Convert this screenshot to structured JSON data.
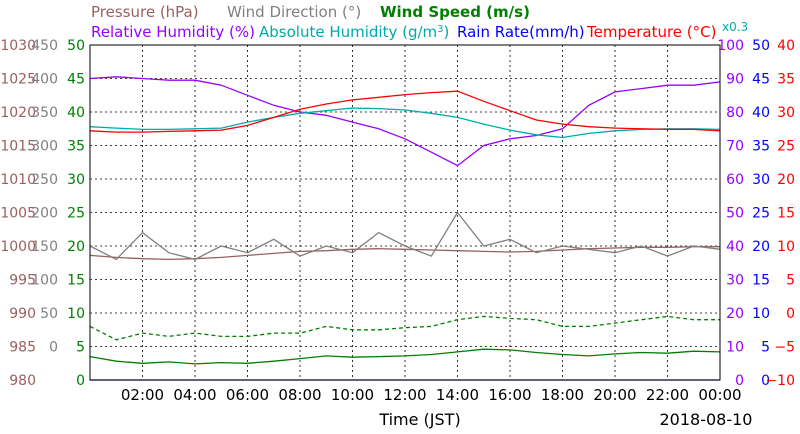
{
  "legend": {
    "pressure": "Pressure (hPa)",
    "wind_direction": "Wind Direction (°)",
    "wind_speed": "Wind Speed (m/s)",
    "relative_humidity": "Relative Humidity (%)",
    "absolute_humidity_prefix": "Absolute Humidity (g/m",
    "absolute_humidity_sup": "3",
    "absolute_humidity_suffix": ")",
    "rain_rate": "Rain Rate(mm/h)",
    "temperature": "Temperature (°C)",
    "abs_humidity_scale": "x0.3"
  },
  "colors": {
    "pressure": "#9a6060",
    "wind_direction": "#808080",
    "wind_speed": "#008000",
    "relative_humidity": "#9900ff",
    "absolute_humidity": "#00aaaa",
    "rain_rate": "#0000ff",
    "temperature": "#ff0000",
    "grid": "#000000"
  },
  "chart_data": {
    "type": "line",
    "xlabel": "Time (JST)",
    "date_label": "2018-08-10",
    "x_ticks": [
      "02:00",
      "04:00",
      "06:00",
      "08:00",
      "10:00",
      "12:00",
      "14:00",
      "16:00",
      "18:00",
      "20:00",
      "22:00",
      "00:00"
    ],
    "xlim_hours": [
      0,
      24
    ],
    "grid": true,
    "axes": {
      "pressure": {
        "ticks": [
          "1030",
          "1025",
          "1020",
          "1015",
          "1010",
          "1005",
          "1000",
          "995",
          "990",
          "985",
          "980"
        ],
        "range": [
          980,
          1030
        ]
      },
      "wind_direction": {
        "ticks": [
          "450",
          "400",
          "350",
          "300",
          "250",
          "200",
          "150",
          "100",
          "50",
          "0"
        ],
        "range": [
          0,
          500
        ]
      },
      "wind_speed": {
        "ticks": [
          "50",
          "45",
          "40",
          "35",
          "30",
          "25",
          "20",
          "15",
          "10",
          "5",
          "0"
        ],
        "range": [
          0,
          50
        ]
      },
      "relative_humidity": {
        "ticks": [
          "100",
          "90",
          "80",
          "70",
          "60",
          "50",
          "40",
          "30",
          "20",
          "10",
          "0"
        ],
        "range": [
          0,
          100
        ]
      },
      "rain_rate": {
        "ticks": [
          "50",
          "45",
          "40",
          "35",
          "30",
          "25",
          "20",
          "15",
          "10",
          "5",
          "0"
        ],
        "range": [
          0,
          50
        ]
      },
      "temperature": {
        "ticks": [
          "40",
          "35",
          "30",
          "25",
          "20",
          "15",
          "10",
          "5",
          "0",
          "−5",
          "−10"
        ],
        "range": [
          -10,
          40
        ]
      }
    },
    "series": [
      {
        "name": "Pressure (hPa)",
        "axis": "pressure",
        "color": "#9a6060",
        "x": [
          0,
          1,
          2,
          3,
          4,
          5,
          6,
          7,
          8,
          9,
          10,
          11,
          12,
          13,
          14,
          15,
          16,
          17,
          18,
          19,
          20,
          21,
          22,
          23,
          24
        ],
        "values": [
          998.6,
          998.3,
          998.1,
          998.0,
          998.1,
          998.3,
          998.6,
          998.9,
          999.2,
          999.3,
          999.5,
          999.6,
          999.5,
          999.4,
          999.3,
          999.2,
          999.1,
          999.2,
          999.4,
          999.6,
          999.7,
          999.8,
          999.8,
          999.9,
          999.9
        ]
      },
      {
        "name": "Wind Direction (°)",
        "axis": "wind_direction",
        "color": "#808080",
        "x": [
          0,
          1,
          2,
          3,
          4,
          5,
          6,
          7,
          8,
          9,
          10,
          11,
          12,
          13,
          14,
          15,
          16,
          17,
          18,
          19,
          20,
          21,
          22,
          23,
          24
        ],
        "values": [
          200,
          180,
          220,
          190,
          180,
          200,
          190,
          210,
          185,
          200,
          190,
          220,
          200,
          185,
          250,
          200,
          210,
          190,
          200,
          195,
          190,
          200,
          185,
          200,
          195
        ]
      },
      {
        "name": "Wind Speed (m/s) mean",
        "axis": "wind_speed",
        "color": "#008000",
        "x": [
          0,
          1,
          2,
          3,
          4,
          5,
          6,
          7,
          8,
          9,
          10,
          11,
          12,
          13,
          14,
          15,
          16,
          17,
          18,
          19,
          20,
          21,
          22,
          23,
          24
        ],
        "values": [
          3.5,
          2.8,
          2.5,
          2.7,
          2.4,
          2.6,
          2.5,
          2.8,
          3.2,
          3.6,
          3.4,
          3.5,
          3.6,
          3.8,
          4.2,
          4.6,
          4.5,
          4.1,
          3.8,
          3.6,
          3.9,
          4.1,
          4.0,
          4.3,
          4.2
        ]
      },
      {
        "name": "Wind Speed (m/s) gust",
        "axis": "wind_speed",
        "color": "#008000",
        "x": [
          0,
          1,
          2,
          3,
          4,
          5,
          6,
          7,
          8,
          9,
          10,
          11,
          12,
          13,
          14,
          15,
          16,
          17,
          18,
          19,
          20,
          21,
          22,
          23,
          24
        ],
        "values": [
          8.0,
          6.0,
          7.0,
          6.5,
          7.0,
          6.5,
          6.5,
          7.0,
          7.0,
          8.0,
          7.5,
          7.5,
          7.8,
          8.0,
          9.0,
          9.5,
          9.2,
          9.0,
          8.0,
          8.0,
          8.5,
          9.0,
          9.5,
          9.0,
          9.0
        ]
      },
      {
        "name": "Relative Humidity (%)",
        "axis": "relative_humidity",
        "color": "#9900ff",
        "x": [
          0,
          1,
          2,
          3,
          4,
          5,
          6,
          7,
          8,
          9,
          10,
          11,
          12,
          13,
          14,
          15,
          16,
          17,
          18,
          19,
          20,
          21,
          22,
          23,
          24
        ],
        "values": [
          90,
          90.5,
          90,
          89.5,
          89.5,
          88,
          85,
          82,
          80,
          79,
          77,
          75,
          72,
          68,
          64,
          70,
          72,
          73,
          75,
          82,
          86,
          87,
          88,
          88,
          89
        ]
      },
      {
        "name": "Absolute Humidity (g/m3)",
        "axis": "temperature",
        "color": "#00aaaa",
        "x": [
          0,
          1,
          2,
          3,
          4,
          5,
          6,
          7,
          8,
          9,
          10,
          11,
          12,
          13,
          14,
          15,
          16,
          17,
          18,
          19,
          20,
          21,
          22,
          23,
          24
        ],
        "values": [
          27.8,
          27.6,
          27.4,
          27.4,
          27.5,
          27.6,
          28.5,
          29.2,
          29.8,
          30.2,
          30.6,
          30.5,
          30.3,
          29.8,
          29.2,
          28.2,
          27.3,
          26.6,
          26.2,
          26.8,
          27.2,
          27.4,
          27.5,
          27.5,
          27.4
        ]
      },
      {
        "name": "Rain Rate(mm/h)",
        "axis": "rain_rate",
        "color": "#0000ff",
        "x": [
          0,
          24
        ],
        "values": [
          0,
          0
        ]
      },
      {
        "name": "Temperature (°C)",
        "axis": "temperature",
        "color": "#ff0000",
        "x": [
          0,
          1,
          2,
          3,
          4,
          5,
          6,
          7,
          8,
          9,
          10,
          11,
          12,
          13,
          14,
          15,
          16,
          17,
          18,
          19,
          20,
          21,
          22,
          23,
          24
        ],
        "values": [
          27.2,
          27.0,
          27.0,
          27.1,
          27.2,
          27.3,
          28.0,
          29.2,
          30.4,
          31.2,
          31.8,
          32.2,
          32.6,
          32.9,
          33.1,
          31.6,
          30.2,
          28.8,
          28.2,
          27.8,
          27.6,
          27.5,
          27.4,
          27.4,
          27.2
        ]
      }
    ]
  }
}
